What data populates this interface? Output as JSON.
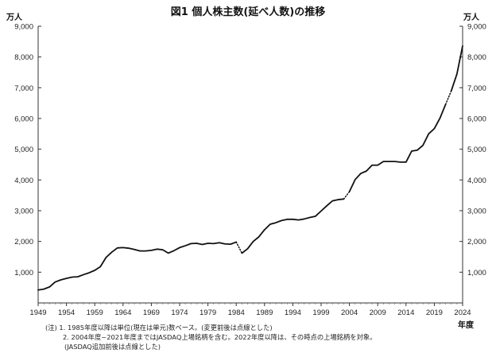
{
  "chart_data": {
    "type": "line",
    "title": "図1  個人株主数(延べ人数)の推移",
    "ylabel_left": "万人",
    "ylabel_right": "万人",
    "xlabel": "年度",
    "ylim": [
      0,
      9000
    ],
    "y_ticks": [
      1000,
      2000,
      3000,
      4000,
      5000,
      6000,
      7000,
      8000,
      9000
    ],
    "y_tick_labels": [
      "1,000",
      "2,000",
      "3,000",
      "4,000",
      "5,000",
      "6,000",
      "7,000",
      "8,000",
      "9,000"
    ],
    "xlim": [
      1949,
      2024
    ],
    "x_ticks": [
      1949,
      1954,
      1959,
      1964,
      1969,
      1974,
      1979,
      1984,
      1989,
      1994,
      1999,
      2004,
      2009,
      2014,
      2019,
      2024
    ],
    "grid": false,
    "series": [
      {
        "segments": [
          {
            "style": "solid",
            "points": [
              [
                1949,
                420
              ],
              [
                1950,
                450
              ],
              [
                1951,
                520
              ],
              [
                1952,
                680
              ],
              [
                1953,
                750
              ],
              [
                1954,
                800
              ],
              [
                1955,
                840
              ],
              [
                1956,
                850
              ],
              [
                1957,
                920
              ],
              [
                1958,
                980
              ],
              [
                1959,
                1060
              ],
              [
                1960,
                1180
              ],
              [
                1961,
                1480
              ],
              [
                1962,
                1650
              ],
              [
                1963,
                1790
              ],
              [
                1964,
                1800
              ],
              [
                1965,
                1780
              ],
              [
                1966,
                1740
              ],
              [
                1967,
                1690
              ],
              [
                1968,
                1690
              ],
              [
                1969,
                1710
              ],
              [
                1970,
                1750
              ],
              [
                1971,
                1730
              ],
              [
                1972,
                1620
              ],
              [
                1973,
                1700
              ],
              [
                1974,
                1800
              ],
              [
                1975,
                1860
              ],
              [
                1976,
                1930
              ],
              [
                1977,
                1940
              ],
              [
                1978,
                1900
              ],
              [
                1979,
                1940
              ],
              [
                1980,
                1930
              ],
              [
                1981,
                1960
              ],
              [
                1982,
                1920
              ],
              [
                1983,
                1910
              ],
              [
                1984,
                1980
              ]
            ]
          },
          {
            "style": "dotted",
            "points": [
              [
                1984,
                1980
              ],
              [
                1985,
                1620
              ]
            ]
          },
          {
            "style": "solid",
            "points": [
              [
                1985,
                1620
              ],
              [
                1986,
                1760
              ],
              [
                1987,
                2000
              ],
              [
                1988,
                2150
              ],
              [
                1989,
                2380
              ],
              [
                1990,
                2560
              ],
              [
                1991,
                2610
              ],
              [
                1992,
                2680
              ],
              [
                1993,
                2720
              ],
              [
                1994,
                2720
              ],
              [
                1995,
                2700
              ],
              [
                1996,
                2730
              ],
              [
                1997,
                2780
              ],
              [
                1998,
                2820
              ],
              [
                1999,
                2990
              ],
              [
                2000,
                3160
              ],
              [
                2001,
                3320
              ],
              [
                2002,
                3360
              ],
              [
                2003,
                3380
              ]
            ]
          },
          {
            "style": "dotted",
            "points": [
              [
                2003,
                3380
              ],
              [
                2004,
                3620
              ]
            ]
          },
          {
            "style": "solid",
            "points": [
              [
                2004,
                3620
              ],
              [
                2005,
                4010
              ],
              [
                2006,
                4210
              ],
              [
                2007,
                4290
              ],
              [
                2008,
                4480
              ],
              [
                2009,
                4480
              ],
              [
                2010,
                4600
              ],
              [
                2011,
                4600
              ],
              [
                2012,
                4600
              ],
              [
                2013,
                4580
              ],
              [
                2014,
                4580
              ],
              [
                2015,
                4940
              ],
              [
                2016,
                4970
              ],
              [
                2017,
                5130
              ],
              [
                2018,
                5500
              ],
              [
                2019,
                5670
              ],
              [
                2020,
                6010
              ],
              [
                2021,
                6460
              ]
            ]
          },
          {
            "style": "dotted",
            "points": [
              [
                2021,
                6460
              ],
              [
                2022,
                6900
              ]
            ]
          },
          {
            "style": "solid",
            "points": [
              [
                2022,
                6900
              ],
              [
                2023,
                7450
              ],
              [
                2024,
                8360
              ]
            ]
          }
        ]
      }
    ]
  },
  "notes": [
    "(注) 1. 1985年度以降は単位(現在は単元)数ベース。(変更前後は点線とした)",
    "2. 2004年度~2021年度まではJASDAQ上場銘柄を含む。2022年度以降は、その時点の上場銘柄を対象。",
    "(JASDAQ追加前後は点線とした)"
  ]
}
